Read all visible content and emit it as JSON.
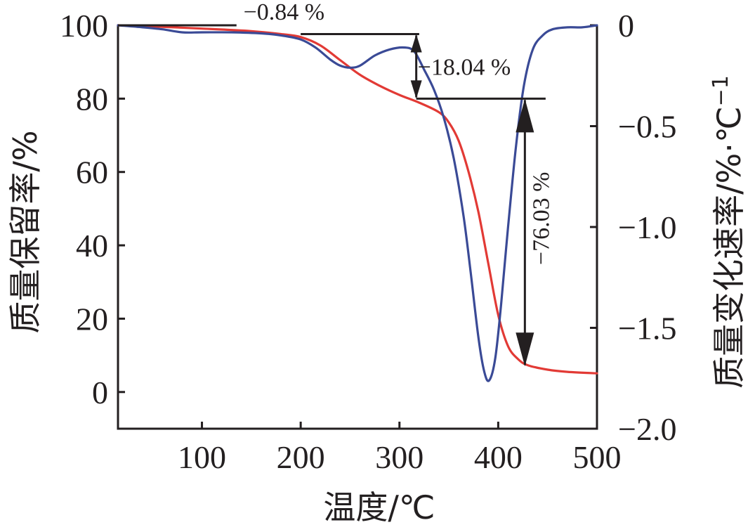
{
  "chart_data": {
    "type": "line",
    "xlabel": "温度/℃",
    "ylabel_left": "质量保留率/%",
    "ylabel_right": "质量变化速率/%·℃",
    "ylabel_right_superscript": "−1",
    "xlim": [
      15,
      500
    ],
    "x_ticks": [
      100,
      200,
      300,
      400,
      500
    ],
    "ylim_left": [
      -10,
      100
    ],
    "y_ticks_left": [
      0,
      20,
      40,
      60,
      80,
      100
    ],
    "ylim_right": [
      -2.0,
      0
    ],
    "y_ticks_right": [
      -2.0,
      -1.5,
      -1.0,
      -0.5,
      0
    ],
    "y_tick_labels_right": [
      "−2.0",
      "−1.5",
      "−1.0",
      "−0.5",
      "0"
    ],
    "grid": false,
    "series": [
      {
        "axis": "left",
        "color": "#e23a35",
        "x": [
          15,
          50,
          100,
          150,
          180,
          200,
          220,
          240,
          260,
          280,
          300,
          320,
          340,
          350,
          360,
          370,
          380,
          390,
          400,
          410,
          420,
          430,
          450,
          470,
          500
        ],
        "y": [
          100,
          99.7,
          99.1,
          98.4,
          97.6,
          96.8,
          94.5,
          90.5,
          86.5,
          83.5,
          81.0,
          78.9,
          76.3,
          73.5,
          68.5,
          60.0,
          49.0,
          35.0,
          21.0,
          12.5,
          9.0,
          7.3,
          6.1,
          5.5,
          5.1
        ]
      },
      {
        "axis": "right",
        "color": "#3a4a96",
        "x": [
          15,
          40,
          60,
          80,
          100,
          130,
          160,
          180,
          200,
          215,
          230,
          240,
          250,
          260,
          275,
          290,
          305,
          315,
          325,
          335,
          345,
          355,
          365,
          372,
          380,
          386,
          391,
          397,
          403,
          410,
          418,
          426,
          435,
          445,
          455,
          470,
          485,
          500
        ],
        "y": [
          0,
          -0.01,
          -0.02,
          -0.035,
          -0.035,
          -0.035,
          -0.04,
          -0.05,
          -0.07,
          -0.11,
          -0.17,
          -0.2,
          -0.21,
          -0.2,
          -0.15,
          -0.12,
          -0.11,
          -0.13,
          -0.22,
          -0.32,
          -0.46,
          -0.66,
          -0.95,
          -1.22,
          -1.55,
          -1.72,
          -1.76,
          -1.65,
          -1.38,
          -1.0,
          -0.6,
          -0.3,
          -0.12,
          -0.05,
          -0.02,
          -0.01,
          -0.01,
          0
        ]
      }
    ],
    "annotations": [
      {
        "label": "−0.84 %",
        "x_from": 15,
        "x_to": 320,
        "y_from": 100,
        "y_to": 97.6
      },
      {
        "label": "−18.04 %",
        "x": 317,
        "y_from": 97.6,
        "y_to": 80
      },
      {
        "label": "−76.03 %",
        "x": 427,
        "y_from": 80,
        "y_to": 7
      }
    ]
  }
}
